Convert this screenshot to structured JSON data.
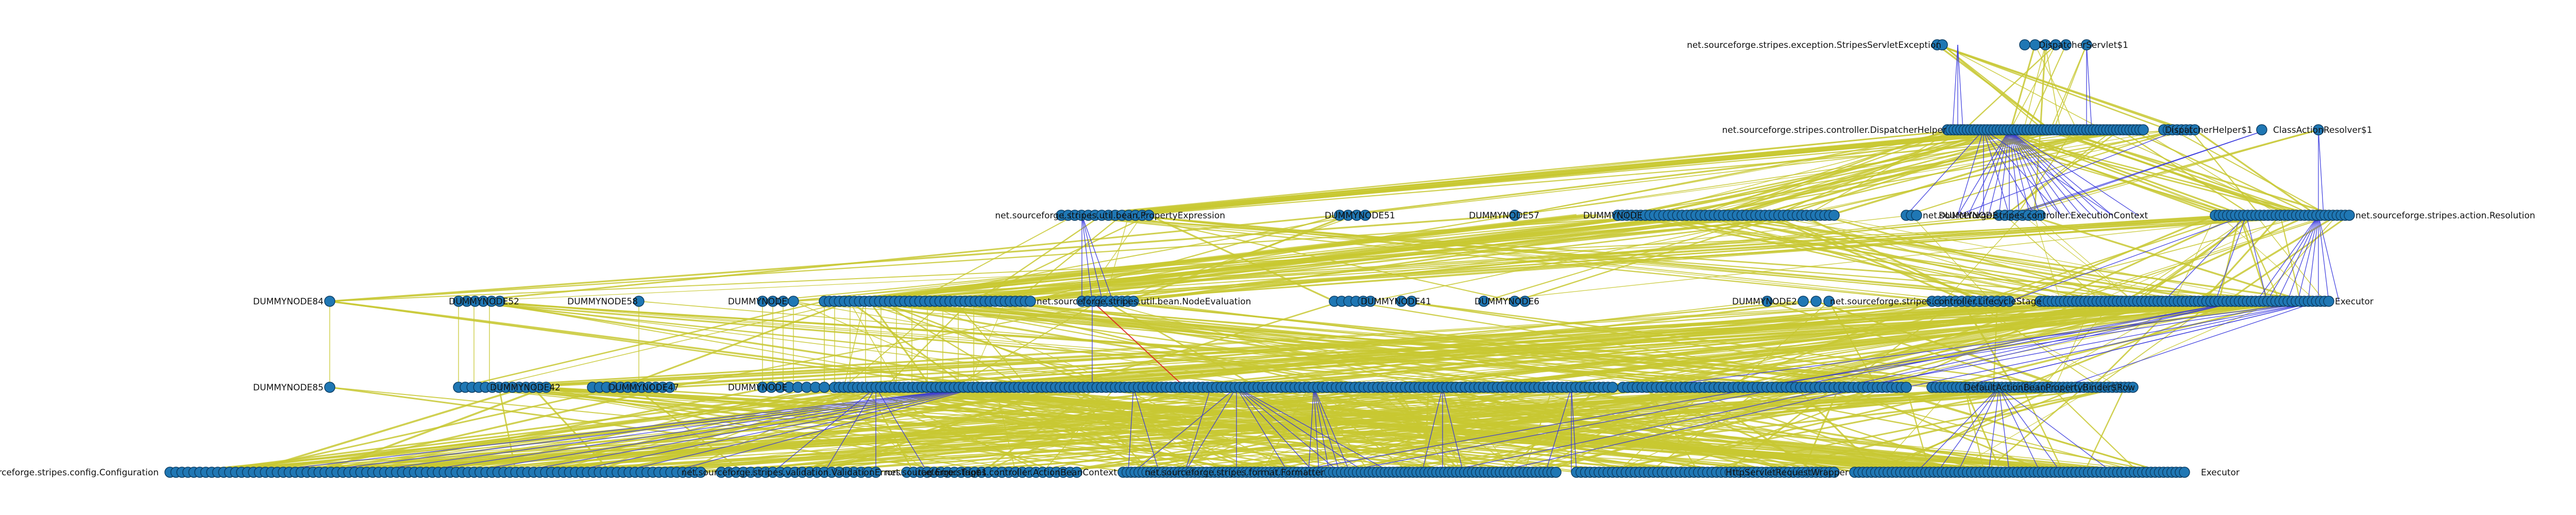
{
  "colors": {
    "node_fill": "#1f77b4",
    "node_stroke": "#0d3f66",
    "edge_yellow": "#c8c832",
    "edge_blue": "#3333dd",
    "edge_red": "#dd2222",
    "label": "#111111",
    "background": "#ffffff"
  },
  "layers": [
    {
      "name": "layer-0",
      "labels": [
        "net.sourceforge.stripes.exception.StripesServletException",
        "DispatcherServlet$1"
      ]
    },
    {
      "name": "layer-1",
      "labels": [
        "net.sourceforge.stripes.controller.DispatcherHelper",
        "DispatcherHelper$1",
        "ClassActionResolver$1"
      ]
    },
    {
      "name": "layer-2",
      "labels": [
        "net.sourceforge.stripes.util.bean.PropertyExpression",
        "DUMMYNODE51",
        "DUMMYNODE57",
        "DUMMYNODE",
        "net.sourceforge.stripes.controller.ExecutionContext",
        "DUMMYNODE",
        "net.sourceforge.stripes.action.Resolution"
      ]
    },
    {
      "name": "layer-3",
      "labels": [
        "DUMMYNODE84",
        "DUMMYNODE52",
        "DUMMYNODE58",
        "DUMMYNODE",
        "net.sourceforge.stripes.util.bean.NodeEvaluation",
        "DUMMYNODE41",
        "DUMMYNODE6",
        "DUMMYNODE2",
        "net.sourceforge.stripes.controller.LifecycleStage",
        "Executor"
      ]
    },
    {
      "name": "layer-4",
      "labels": [
        "DUMMYNODE85",
        "DUMMYNODE42",
        "DUMMYNODE47",
        "DUMMYNODE",
        "DefaultActionBeanPropertyBinder$Row"
      ]
    },
    {
      "name": "layer-5",
      "labels": [
        "net.sourceforge.stripes.config.Configuration",
        "net.sourceforge.stripes.validation.ValidationErrors",
        "tag.ErrorsTag$1",
        "net.sourceforge.stripes.controller.ActionBeanContext",
        "net.sourceforge.stripes.format.Formatter",
        "HttpServletRequestWrapper",
        "Executor"
      ]
    }
  ]
}
